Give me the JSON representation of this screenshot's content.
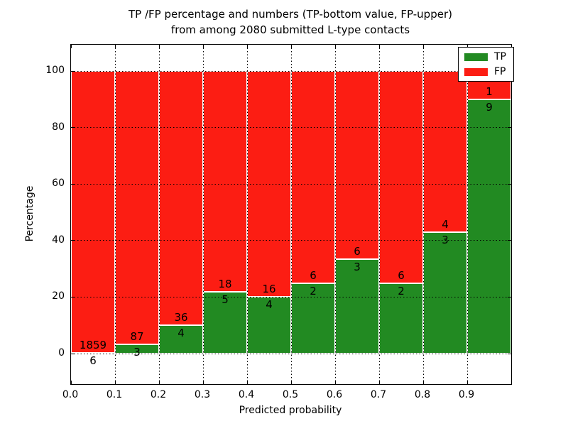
{
  "title": {
    "line1": "TP /FP percentage and numbers (TP-bottom value, FP-upper)",
    "line2": "from among 2080 submitted L-type contacts"
  },
  "axes": {
    "xlabel": "Predicted probability",
    "ylabel": "Percentage",
    "x_tick_labels": [
      "0.0",
      "0.1",
      "0.2",
      "0.3",
      "0.4",
      "0.5",
      "0.6",
      "0.7",
      "0.8",
      "0.9"
    ],
    "y_tick_labels": [
      "0",
      "20",
      "40",
      "60",
      "80",
      "100"
    ],
    "y_tick_values": [
      0,
      20,
      40,
      60,
      80,
      100
    ],
    "x_range": [
      0.0,
      1.0
    ],
    "grid_style": "dotted"
  },
  "legend": {
    "position": "upper-right",
    "items": [
      {
        "label": "TP",
        "color": "#228a22"
      },
      {
        "label": "FP",
        "color": "#fc1d13"
      }
    ]
  },
  "colors": {
    "tp": "#228a22",
    "fp": "#fc1d13",
    "bar_edge": "#ffffff",
    "grid": "#000000",
    "background": "#ffffff",
    "text": "#000000"
  },
  "chart_data": {
    "type": "bar",
    "stacked": true,
    "unit": "percent",
    "title": "TP /FP percentage and numbers (TP-bottom value, FP-upper) from among 2080 submitted L-type contacts",
    "xlabel": "Predicted probability",
    "ylabel": "Percentage",
    "total_contacts": 2080,
    "categories": [
      "0.0-0.1",
      "0.1-0.2",
      "0.2-0.3",
      "0.3-0.4",
      "0.4-0.5",
      "0.5-0.6",
      "0.6-0.7",
      "0.7-0.8",
      "0.8-0.9",
      "0.9-1.0"
    ],
    "series": [
      {
        "name": "TP",
        "counts": [
          6,
          3,
          4,
          5,
          4,
          2,
          3,
          2,
          3,
          9
        ],
        "pct": [
          0.32,
          3.33,
          10.0,
          21.74,
          20.0,
          25.0,
          33.33,
          25.0,
          42.86,
          90.0
        ]
      },
      {
        "name": "FP",
        "counts": [
          1859,
          87,
          36,
          18,
          16,
          6,
          6,
          6,
          4,
          1
        ],
        "pct": [
          99.68,
          96.67,
          90.0,
          78.26,
          80.0,
          75.0,
          66.67,
          75.0,
          57.14,
          10.0
        ]
      }
    ],
    "ylim_displayed": [
      0,
      100
    ],
    "legend_position": "upper right"
  }
}
